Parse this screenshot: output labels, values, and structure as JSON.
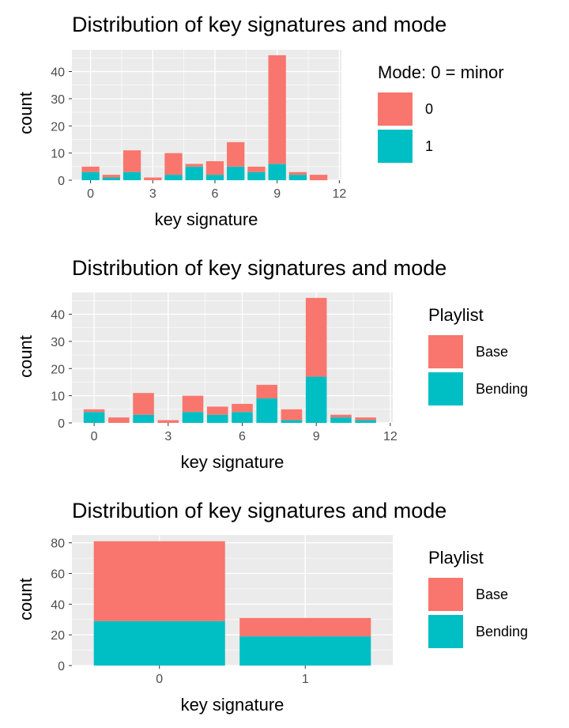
{
  "chart_data": [
    {
      "type": "bar",
      "stacked": true,
      "title": "Distribution of key signatures and mode",
      "xlabel": "key signature",
      "ylabel": "count",
      "x_ticks": [
        "0",
        "3",
        "6",
        "9",
        "12"
      ],
      "y_ticks": [
        "0",
        "10",
        "20",
        "30",
        "40"
      ],
      "xlim": [
        -0.9,
        12.1
      ],
      "ylim": [
        0,
        48
      ],
      "categories": [
        0,
        1,
        2,
        3,
        4,
        5,
        6,
        7,
        8,
        9,
        10,
        11
      ],
      "legend_title": "Mode: 0 = minor",
      "legend_position": "right",
      "grid": true,
      "series": [
        {
          "name": "0",
          "color": "#F8766D",
          "values": [
            2,
            1,
            8,
            1,
            8,
            1,
            5,
            9,
            2,
            40,
            1,
            2
          ]
        },
        {
          "name": "1",
          "color": "#00BFC4",
          "values": [
            3,
            1,
            3,
            0,
            2,
            5,
            2,
            5,
            3,
            6,
            2,
            0
          ]
        }
      ]
    },
    {
      "type": "bar",
      "stacked": true,
      "title": "Distribution of key signatures and mode",
      "xlabel": "key signature",
      "ylabel": "count",
      "x_ticks": [
        "0",
        "3",
        "6",
        "9",
        "12"
      ],
      "y_ticks": [
        "0",
        "10",
        "20",
        "30",
        "40"
      ],
      "xlim": [
        -0.9,
        12.1
      ],
      "ylim": [
        0,
        48
      ],
      "categories": [
        0,
        1,
        2,
        3,
        4,
        5,
        6,
        7,
        8,
        9,
        10,
        11
      ],
      "legend_title": "Playlist",
      "legend_position": "right",
      "grid": true,
      "series": [
        {
          "name": "Base",
          "color": "#F8766D",
          "values": [
            1,
            2,
            8,
            1,
            6,
            3,
            3,
            5,
            4,
            29,
            1,
            1
          ]
        },
        {
          "name": "Bending",
          "color": "#00BFC4",
          "values": [
            4,
            0,
            3,
            0,
            4,
            3,
            4,
            9,
            1,
            17,
            2,
            1
          ]
        }
      ]
    },
    {
      "type": "bar",
      "stacked": true,
      "title": "Distribution of key signatures and mode",
      "xlabel": "key signature",
      "ylabel": "count",
      "x_ticks": [
        "0",
        "1"
      ],
      "y_ticks": [
        "0",
        "20",
        "40",
        "60",
        "80"
      ],
      "ylim": [
        0,
        85
      ],
      "categories": [
        "0",
        "1"
      ],
      "legend_title": "Playlist",
      "legend_position": "right",
      "grid": true,
      "series": [
        {
          "name": "Base",
          "color": "#F8766D",
          "values": [
            52,
            12
          ]
        },
        {
          "name": "Bending",
          "color": "#00BFC4",
          "values": [
            29,
            19
          ]
        }
      ]
    }
  ]
}
